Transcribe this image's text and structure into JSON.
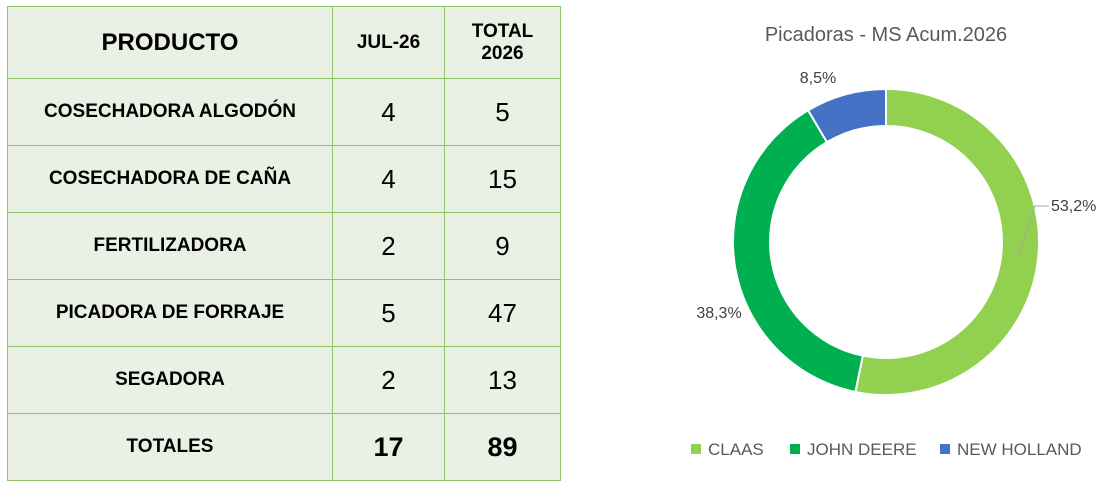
{
  "table": {
    "headers": {
      "product": "PRODUCTO",
      "month_line1": "JUL-26",
      "total_line1": "TOTAL",
      "total_line2": "2026"
    },
    "rows": [
      {
        "product": "COSECHADORA ALGODÓN",
        "month": "4",
        "total": "5"
      },
      {
        "product": "COSECHADORA DE CAÑA",
        "month": "4",
        "total": "15"
      },
      {
        "product": "FERTILIZADORA",
        "month": "2",
        "total": "9"
      },
      {
        "product": "PICADORA DE FORRAJE",
        "month": "5",
        "total": "47"
      },
      {
        "product": "SEGADORA",
        "month": "2",
        "total": "13"
      }
    ],
    "totals": {
      "label": "TOTALES",
      "month": "17",
      "total": "89"
    }
  },
  "chart_data": {
    "type": "pie",
    "variant": "donut",
    "title": "Picadoras - MS Acum.2026",
    "categories": [
      "CLAAS",
      "JOHN DEERE",
      "NEW HOLLAND"
    ],
    "values": [
      53.2,
      38.3,
      8.5
    ],
    "labels": [
      "53,2%",
      "38,3%",
      "8,5%"
    ],
    "colors": [
      "#92d050",
      "#00b050",
      "#4472c4"
    ],
    "legend_position": "bottom"
  }
}
